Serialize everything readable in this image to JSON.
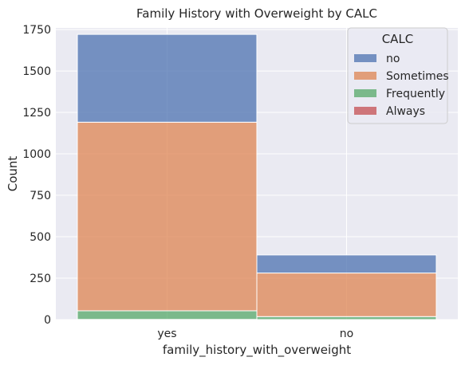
{
  "chart_data": {
    "type": "bar",
    "stacked": true,
    "title": "Family History with Overweight by CALC",
    "xlabel": "family_history_with_overweight",
    "ylabel": "Count",
    "categories": [
      "yes",
      "no"
    ],
    "ylim": [
      0,
      1760
    ],
    "yticks": [
      0,
      250,
      500,
      750,
      1000,
      1250,
      1500,
      1750
    ],
    "grid": true,
    "legend": {
      "title": "CALC",
      "position": "top-right"
    },
    "series": [
      {
        "name": "no",
        "color": "#4c72b0",
        "values": [
          530,
          109
        ]
      },
      {
        "name": "Sometimes",
        "color": "#dd8452",
        "values": [
          1138,
          263
        ]
      },
      {
        "name": "Frequently",
        "color": "#55a868",
        "values": [
          52,
          18
        ]
      },
      {
        "name": "Always",
        "color": "#c44e52",
        "values": [
          1,
          0
        ]
      }
    ]
  }
}
